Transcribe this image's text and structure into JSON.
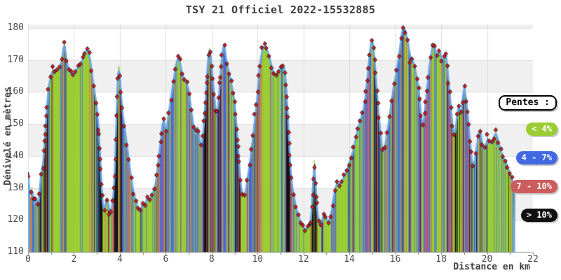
{
  "chart_data": {
    "type": "area",
    "title": "TSY 21 Officiel 2022-15532885",
    "xlabel": "Distance en km",
    "ylabel": "Dénivelé en mètres",
    "xlim": [
      0,
      22
    ],
    "ylim": [
      110,
      180
    ],
    "x_major_ticks": [
      0,
      2,
      4,
      6,
      8,
      10,
      12,
      14,
      16,
      18,
      20,
      22
    ],
    "x_minor_tick_step": 1,
    "y_ticks": [
      110,
      120,
      130,
      140,
      150,
      160,
      170,
      180
    ],
    "grid": true,
    "background_bands": {
      "light": "#ffffff",
      "shaded": "#f0f0f1"
    },
    "line": {
      "color": "#6aa6e8",
      "width": 2.6
    },
    "marker": {
      "shape": "diamond",
      "fill": "#e41a28",
      "edge": "#181818"
    },
    "legend": {
      "title": "Pentes :",
      "position": "right",
      "items": [
        {
          "label": "< 4%",
          "color": "#9acd32"
        },
        {
          "label": "4 - 7%",
          "color": "#4169e1"
        },
        {
          "label": "7 - 10%",
          "color": "#cd5c5c"
        },
        {
          "label": "> 10%",
          "color": "#111111"
        }
      ]
    },
    "slope_thresholds_pct": [
      4,
      7,
      10
    ],
    "profile_km_m": [
      [
        0,
        137
      ],
      [
        0.03,
        132
      ],
      [
        0.06,
        127.5
      ],
      [
        0.1,
        126
      ],
      [
        0.13,
        129
      ],
      [
        0.16,
        131
      ],
      [
        0.2,
        128.5
      ],
      [
        0.24,
        126
      ],
      [
        0.28,
        124.5
      ],
      [
        0.32,
        126
      ],
      [
        0.36,
        127.5
      ],
      [
        0.4,
        125.5
      ],
      [
        0.44,
        124.5
      ],
      [
        0.48,
        127
      ],
      [
        0.52,
        130
      ],
      [
        0.55,
        133.5
      ],
      [
        0.58,
        137.5
      ],
      [
        0.61,
        134.5
      ],
      [
        0.65,
        136
      ],
      [
        0.7,
        141
      ],
      [
        0.75,
        147
      ],
      [
        0.8,
        152
      ],
      [
        0.85,
        157
      ],
      [
        0.9,
        161
      ],
      [
        0.95,
        164
      ],
      [
        1.0,
        164.5
      ],
      [
        1.06,
        165.5
      ],
      [
        1.12,
        166
      ],
      [
        1.18,
        166.5
      ],
      [
        1.24,
        167
      ],
      [
        1.3,
        167
      ],
      [
        1.36,
        166.5
      ],
      [
        1.42,
        168
      ],
      [
        1.48,
        170.5
      ],
      [
        1.53,
        174
      ],
      [
        1.57,
        176.5
      ],
      [
        1.61,
        174.5
      ],
      [
        1.65,
        171.5
      ],
      [
        1.69,
        169
      ],
      [
        1.75,
        167
      ],
      [
        1.82,
        166
      ],
      [
        1.9,
        165.5
      ],
      [
        1.98,
        165
      ],
      [
        2.06,
        166
      ],
      [
        2.14,
        167
      ],
      [
        2.22,
        168
      ],
      [
        2.3,
        169
      ],
      [
        2.38,
        170
      ],
      [
        2.46,
        171.5
      ],
      [
        2.54,
        173
      ],
      [
        2.6,
        173
      ],
      [
        2.66,
        172
      ],
      [
        2.72,
        169.5
      ],
      [
        2.78,
        166
      ],
      [
        2.84,
        162.5
      ],
      [
        2.9,
        160.5
      ],
      [
        2.97,
        157
      ],
      [
        3.04,
        152
      ],
      [
        3.1,
        146
      ],
      [
        3.16,
        138
      ],
      [
        3.22,
        128
      ],
      [
        3.27,
        123.5
      ],
      [
        3.33,
        123
      ],
      [
        3.4,
        126
      ],
      [
        3.46,
        127
      ],
      [
        3.52,
        124
      ],
      [
        3.59,
        122.5
      ],
      [
        3.66,
        124
      ],
      [
        3.73,
        128
      ],
      [
        3.78,
        134
      ],
      [
        3.83,
        146
      ],
      [
        3.88,
        160
      ],
      [
        3.92,
        168
      ],
      [
        3.96,
        168.5
      ],
      [
        4.0,
        165
      ],
      [
        4.05,
        160
      ],
      [
        4.1,
        155
      ],
      [
        4.15,
        151.5
      ],
      [
        4.22,
        148
      ],
      [
        4.3,
        144
      ],
      [
        4.38,
        139.5
      ],
      [
        4.46,
        135
      ],
      [
        4.54,
        131
      ],
      [
        4.62,
        128
      ],
      [
        4.72,
        125
      ],
      [
        4.82,
        122.5
      ],
      [
        4.9,
        122
      ],
      [
        4.97,
        124
      ],
      [
        5.04,
        126
      ],
      [
        5.11,
        125
      ],
      [
        5.18,
        127
      ],
      [
        5.25,
        126.5
      ],
      [
        5.32,
        126
      ],
      [
        5.39,
        127.5
      ],
      [
        5.46,
        129
      ],
      [
        5.53,
        131
      ],
      [
        5.6,
        134
      ],
      [
        5.68,
        138.5
      ],
      [
        5.76,
        143
      ],
      [
        5.84,
        148.5
      ],
      [
        5.9,
        153
      ],
      [
        5.95,
        150
      ],
      [
        6.0,
        147.5
      ],
      [
        6.05,
        149
      ],
      [
        6.12,
        152.5
      ],
      [
        6.19,
        156
      ],
      [
        6.27,
        160
      ],
      [
        6.35,
        164
      ],
      [
        6.43,
        167.5
      ],
      [
        6.5,
        170
      ],
      [
        6.56,
        171
      ],
      [
        6.62,
        169.5
      ],
      [
        6.68,
        167
      ],
      [
        6.75,
        165
      ],
      [
        6.82,
        164
      ],
      [
        6.9,
        163.5
      ],
      [
        6.97,
        162
      ],
      [
        7.03,
        159
      ],
      [
        7.1,
        155
      ],
      [
        7.17,
        151
      ],
      [
        7.24,
        148
      ],
      [
        7.31,
        146.5
      ],
      [
        7.37,
        149.5
      ],
      [
        7.43,
        147.5
      ],
      [
        7.5,
        144
      ],
      [
        7.57,
        142
      ],
      [
        7.64,
        147
      ],
      [
        7.71,
        155
      ],
      [
        7.78,
        163
      ],
      [
        7.84,
        170
      ],
      [
        7.89,
        174
      ],
      [
        7.94,
        172.5
      ],
      [
        8.0,
        168
      ],
      [
        8.07,
        162
      ],
      [
        8.14,
        156
      ],
      [
        8.2,
        152.5
      ],
      [
        8.26,
        154
      ],
      [
        8.33,
        160
      ],
      [
        8.4,
        167
      ],
      [
        8.46,
        172.5
      ],
      [
        8.51,
        175.5
      ],
      [
        8.57,
        173.5
      ],
      [
        8.64,
        170
      ],
      [
        8.71,
        167
      ],
      [
        8.78,
        164.5
      ],
      [
        8.86,
        163
      ],
      [
        8.93,
        160
      ],
      [
        9.0,
        157
      ],
      [
        9.06,
        152
      ],
      [
        9.12,
        146
      ],
      [
        9.18,
        139.5
      ],
      [
        9.24,
        133
      ],
      [
        9.3,
        129
      ],
      [
        9.38,
        127.5
      ],
      [
        9.46,
        128
      ],
      [
        9.53,
        131
      ],
      [
        9.6,
        135
      ],
      [
        9.68,
        139
      ],
      [
        9.76,
        143.5
      ],
      [
        9.84,
        148
      ],
      [
        9.92,
        153.5
      ],
      [
        10.0,
        160
      ],
      [
        10.07,
        166
      ],
      [
        10.14,
        170.5
      ],
      [
        10.21,
        173.5
      ],
      [
        10.28,
        174.5
      ],
      [
        10.36,
        173.5
      ],
      [
        10.44,
        172.5
      ],
      [
        10.52,
        171
      ],
      [
        10.6,
        169
      ],
      [
        10.68,
        166.5
      ],
      [
        10.76,
        165
      ],
      [
        10.84,
        165.5
      ],
      [
        10.92,
        166.5
      ],
      [
        11.0,
        167
      ],
      [
        11.07,
        168
      ],
      [
        11.13,
        169
      ],
      [
        11.19,
        166.5
      ],
      [
        11.25,
        162
      ],
      [
        11.31,
        154
      ],
      [
        11.37,
        144
      ],
      [
        11.43,
        136.5
      ],
      [
        11.5,
        131
      ],
      [
        11.58,
        127.5
      ],
      [
        11.67,
        124
      ],
      [
        11.76,
        121.5
      ],
      [
        11.86,
        119.5
      ],
      [
        11.96,
        118
      ],
      [
        12.06,
        117
      ],
      [
        12.16,
        117.5
      ],
      [
        12.26,
        118.5
      ],
      [
        12.33,
        120
      ],
      [
        12.39,
        126
      ],
      [
        12.44,
        137
      ],
      [
        12.47,
        140
      ],
      [
        12.51,
        134
      ],
      [
        12.56,
        126.5
      ],
      [
        12.61,
        121.5
      ],
      [
        12.69,
        119
      ],
      [
        12.78,
        118.5
      ],
      [
        12.86,
        120.5
      ],
      [
        12.93,
        122
      ],
      [
        13.0,
        120.5
      ],
      [
        13.07,
        119
      ],
      [
        13.15,
        120
      ],
      [
        13.23,
        122.5
      ],
      [
        13.3,
        126.5
      ],
      [
        13.37,
        130
      ],
      [
        13.44,
        131.5
      ],
      [
        13.52,
        132
      ],
      [
        13.6,
        131
      ],
      [
        13.68,
        132
      ],
      [
        13.77,
        133.5
      ],
      [
        13.87,
        135
      ],
      [
        13.97,
        137
      ],
      [
        14.07,
        139.5
      ],
      [
        14.17,
        142
      ],
      [
        14.27,
        145
      ],
      [
        14.37,
        148
      ],
      [
        14.45,
        150.5
      ],
      [
        14.52,
        152
      ],
      [
        14.6,
        154
      ],
      [
        14.67,
        156.5
      ],
      [
        14.72,
        160
      ],
      [
        14.78,
        164
      ],
      [
        14.84,
        168
      ],
      [
        14.88,
        172
      ],
      [
        14.93,
        175
      ],
      [
        14.98,
        176.5
      ],
      [
        15.03,
        175.5
      ],
      [
        15.08,
        172
      ],
      [
        15.14,
        166
      ],
      [
        15.21,
        159
      ],
      [
        15.29,
        152
      ],
      [
        15.37,
        146
      ],
      [
        15.44,
        142.5
      ],
      [
        15.5,
        141
      ],
      [
        15.56,
        143
      ],
      [
        15.63,
        146.5
      ],
      [
        15.7,
        150
      ],
      [
        15.78,
        154
      ],
      [
        15.86,
        158
      ],
      [
        15.94,
        161.5
      ],
      [
        16.02,
        165
      ],
      [
        16.1,
        168.5
      ],
      [
        16.18,
        172.5
      ],
      [
        16.26,
        177
      ],
      [
        16.33,
        180
      ],
      [
        16.39,
        180
      ],
      [
        16.45,
        178.5
      ],
      [
        16.51,
        177
      ],
      [
        16.58,
        174.5
      ],
      [
        16.65,
        172
      ],
      [
        16.73,
        170
      ],
      [
        16.81,
        169
      ],
      [
        16.89,
        166.5
      ],
      [
        16.96,
        164
      ],
      [
        17.03,
        160.5
      ],
      [
        17.09,
        155.5
      ],
      [
        17.15,
        151
      ],
      [
        17.21,
        149
      ],
      [
        17.28,
        153
      ],
      [
        17.35,
        158.5
      ],
      [
        17.43,
        164.5
      ],
      [
        17.51,
        169.5
      ],
      [
        17.57,
        172
      ],
      [
        17.63,
        174.5
      ],
      [
        17.7,
        175.5
      ],
      [
        17.76,
        172.5
      ],
      [
        17.81,
        170.5
      ],
      [
        17.87,
        172.5
      ],
      [
        17.93,
        173.5
      ],
      [
        17.99,
        171.5
      ],
      [
        18.05,
        168
      ],
      [
        18.11,
        170
      ],
      [
        18.16,
        172.5
      ],
      [
        18.22,
        171.5
      ],
      [
        18.28,
        167
      ],
      [
        18.34,
        162
      ],
      [
        18.4,
        157.5
      ],
      [
        18.46,
        152.5
      ],
      [
        18.52,
        148
      ],
      [
        18.58,
        146
      ],
      [
        18.64,
        148.5
      ],
      [
        18.7,
        153
      ],
      [
        18.75,
        156
      ],
      [
        18.8,
        153.5
      ],
      [
        18.86,
        153
      ],
      [
        18.92,
        156.5
      ],
      [
        18.98,
        161
      ],
      [
        19.03,
        161.5
      ],
      [
        19.08,
        158.5
      ],
      [
        19.14,
        155
      ],
      [
        19.2,
        149.5
      ],
      [
        19.26,
        144
      ],
      [
        19.32,
        139
      ],
      [
        19.38,
        136
      ],
      [
        19.44,
        137.5
      ],
      [
        19.5,
        141
      ],
      [
        19.56,
        144
      ],
      [
        19.63,
        146.5
      ],
      [
        19.7,
        147.5
      ],
      [
        19.76,
        145
      ],
      [
        19.82,
        142
      ],
      [
        19.88,
        141.5
      ],
      [
        19.94,
        143
      ],
      [
        20.0,
        144.5
      ],
      [
        20.07,
        144.5
      ],
      [
        20.14,
        143.5
      ],
      [
        20.21,
        144
      ],
      [
        20.28,
        145.5
      ],
      [
        20.35,
        147
      ],
      [
        20.42,
        146
      ],
      [
        20.5,
        144
      ],
      [
        20.59,
        142
      ],
      [
        20.69,
        140
      ],
      [
        20.79,
        138.5
      ],
      [
        20.89,
        137
      ],
      [
        20.99,
        135
      ],
      [
        21.09,
        133
      ],
      [
        21.2,
        130
      ]
    ]
  }
}
